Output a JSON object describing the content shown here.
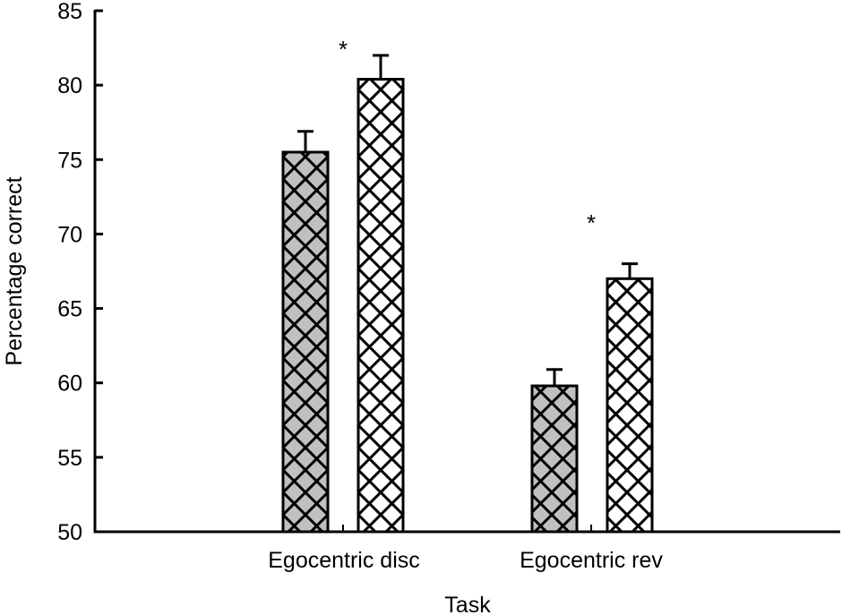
{
  "chart_data": {
    "type": "bar",
    "title": "",
    "xlabel": "Task",
    "ylabel": "Percentage correct",
    "ylim": [
      50,
      85
    ],
    "yticks": [
      50,
      55,
      60,
      65,
      70,
      75,
      80,
      85
    ],
    "grid": false,
    "legend": null,
    "categories": [
      "Egocentric disc",
      "Egocentric rev"
    ],
    "series": [
      {
        "name": "Group A (grey cross-hatched)",
        "fill": "#c0c0c0",
        "values": [
          75.5,
          59.8
        ],
        "error": [
          1.4,
          1.1
        ]
      },
      {
        "name": "Group B (white cross-hatched)",
        "fill": "#ffffff",
        "values": [
          80.4,
          67.0
        ],
        "error": [
          1.6,
          1.0
        ]
      }
    ],
    "annotations": [
      {
        "text": "*",
        "category": "Egocentric disc",
        "note": "significance marker"
      },
      {
        "text": "*",
        "category": "Egocentric rev",
        "note": "significance marker"
      }
    ]
  },
  "labels": {
    "xlabel": "Task",
    "ylabel": "Percentage correct",
    "categories": [
      "Egocentric disc",
      "Egocentric rev"
    ],
    "yticks": [
      "50",
      "55",
      "60",
      "65",
      "70",
      "75",
      "80",
      "85"
    ],
    "stars": [
      "*",
      "*"
    ]
  }
}
